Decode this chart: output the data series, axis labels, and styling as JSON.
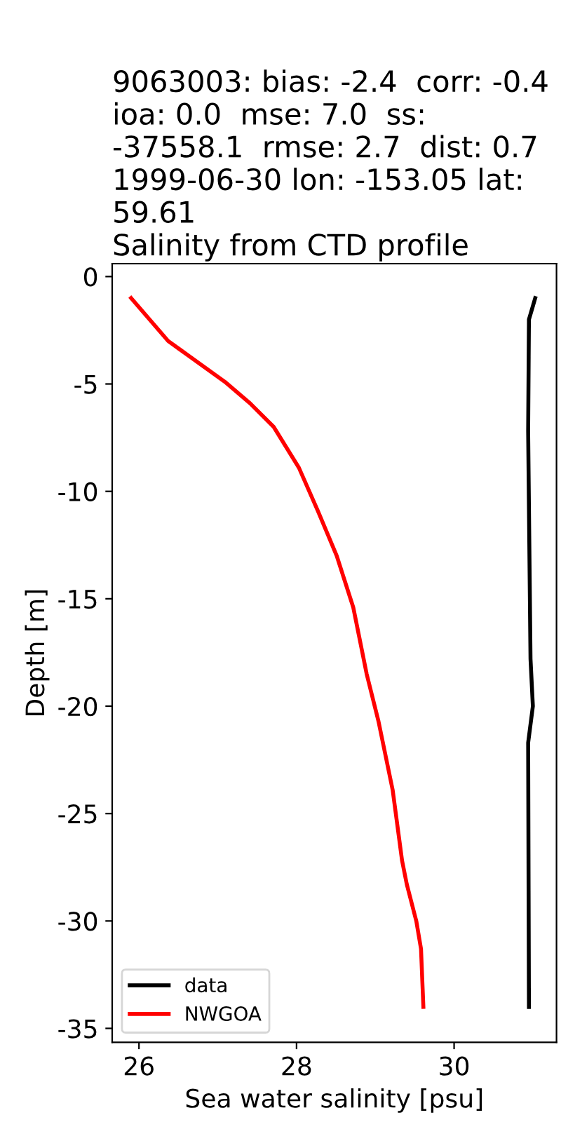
{
  "chart_data": {
    "type": "line",
    "title": "9063003: bias: -2.4  corr: -0.4  ioa: 0.0  mse: 7.0  ss: -37558.1  rmse: 2.7  dist: 0.7\n1999-06-30 lon: -153.05 lat: 59.61\nSalinity from CTD profile",
    "xlabel": "Sea water salinity [psu]",
    "ylabel": "Depth [m]",
    "xlim": [
      25.66,
      31.3
    ],
    "xticks": [
      26,
      28,
      30
    ],
    "ylim": [
      -35.65,
      0.6
    ],
    "yticks": [
      0,
      -5,
      -10,
      -15,
      -20,
      -25,
      -30,
      -35
    ],
    "legend": "lower left",
    "grid": false,
    "series": [
      {
        "name": "data",
        "color": "#000000",
        "x": [
          31.03,
          30.95,
          30.94,
          30.97,
          31.0,
          30.94,
          30.95
        ],
        "values": [
          -1,
          -2,
          -7.2,
          -17.8,
          -20.0,
          -21.7,
          -34
        ]
      },
      {
        "name": "NWGOA",
        "color": "#ff0000",
        "x": [
          25.9,
          26.37,
          27.09,
          27.41,
          27.71,
          28.03,
          28.27,
          28.51,
          28.72,
          28.89,
          29.04,
          29.22,
          29.34,
          29.4,
          29.52,
          29.58,
          29.61
        ],
        "values": [
          -1,
          -3,
          -4.9,
          -5.9,
          -7,
          -8.9,
          -10.9,
          -13,
          -15.4,
          -18.5,
          -20.7,
          -23.9,
          -27.2,
          -28.3,
          -30,
          -31.3,
          -34
        ]
      }
    ]
  }
}
